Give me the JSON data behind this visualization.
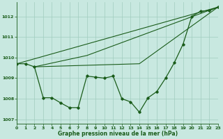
{
  "title": "Graphe pression niveau de la mer (hPa)",
  "bg_color": "#c8e8e0",
  "grid_color": "#a0ccbe",
  "line_color": "#1a5c1a",
  "xlim": [
    0,
    23
  ],
  "ylim": [
    1006.8,
    1012.7
  ],
  "yticks": [
    1007,
    1008,
    1009,
    1010,
    1011,
    1012
  ],
  "xticks": [
    0,
    1,
    2,
    3,
    4,
    5,
    6,
    7,
    8,
    9,
    10,
    11,
    12,
    13,
    14,
    15,
    16,
    17,
    18,
    19,
    20,
    21,
    22,
    23
  ],
  "main_x": [
    0,
    1,
    2,
    3,
    4,
    5,
    6,
    7,
    8,
    9,
    10,
    11,
    12,
    13,
    14,
    15,
    16,
    17,
    18,
    19,
    20,
    21,
    22,
    23
  ],
  "main_y": [
    1009.7,
    1009.7,
    1009.55,
    1008.05,
    1008.05,
    1007.8,
    1007.57,
    1007.57,
    1009.1,
    1009.05,
    1009.0,
    1009.1,
    1008.0,
    1007.85,
    1007.35,
    1008.05,
    1008.35,
    1009.0,
    1009.75,
    1010.65,
    1012.0,
    1012.25,
    1012.28,
    1012.45
  ],
  "trend1_x": [
    0,
    23
  ],
  "trend1_y": [
    1009.7,
    1012.45
  ],
  "trend2_x": [
    2,
    14,
    23
  ],
  "trend2_y": [
    1009.55,
    1009.7,
    1012.45
  ],
  "trend3_x": [
    2,
    8,
    23
  ],
  "trend3_y": [
    1009.55,
    1010.1,
    1012.45
  ]
}
